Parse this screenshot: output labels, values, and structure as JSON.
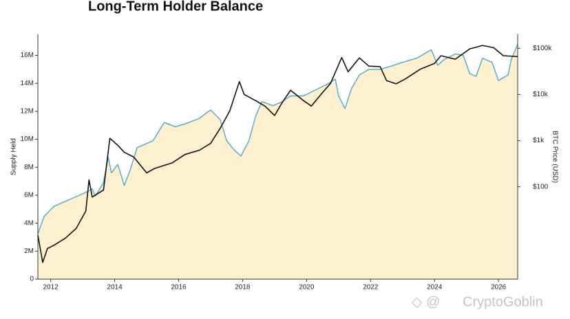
{
  "chart_data": {
    "type": "line",
    "title": "Long-Term Holder Balance",
    "ylabel": "Supply Held",
    "y2label": "BTC Price (USD)",
    "annotation": "CryptoGoblin",
    "xlim": [
      2011.6,
      2026.6
    ],
    "xticks": [
      2012,
      2014,
      2016,
      2018,
      2020,
      2022,
      2024,
      2026
    ],
    "ylim": [
      0,
      17.5
    ],
    "yticks": [
      0,
      {
        "value": 2,
        "label": "2M"
      },
      {
        "value": 4,
        "label": "4M"
      },
      {
        "value": 6,
        "label": "6M"
      },
      {
        "value": 8,
        "label": "8M"
      },
      {
        "value": 10,
        "label": "10M"
      },
      {
        "value": 12,
        "label": "12M"
      },
      {
        "value": 14,
        "label": "14M"
      },
      {
        "value": 16,
        "label": "16M"
      }
    ],
    "y2lim": [
      1,
      200000
    ],
    "y2scale": "log",
    "y2ticks": [
      {
        "value": 100,
        "label": "$100"
      },
      {
        "value": 1000,
        "label": "$1k"
      },
      {
        "value": 10000,
        "label": "$10k"
      },
      {
        "value": 100000,
        "label": "$100k"
      }
    ],
    "series": [
      {
        "name": "Supply Held",
        "color": "#4aa8d8",
        "fill": "#fdf0cf",
        "x": [
          2011.6,
          2011.8,
          2012.1,
          2012.6,
          2013.0,
          2013.3,
          2013.4,
          2013.65,
          2013.8,
          2013.9,
          2014.1,
          2014.3,
          2014.5,
          2014.7,
          2015.2,
          2015.55,
          2015.9,
          2016.2,
          2016.65,
          2017.0,
          2017.3,
          2017.5,
          2017.75,
          2017.95,
          2018.2,
          2018.4,
          2018.6,
          2018.95,
          2019.25,
          2019.5,
          2019.9,
          2020.35,
          2020.7,
          2020.9,
          2021.0,
          2021.2,
          2021.4,
          2021.65,
          2021.95,
          2022.3,
          2022.6,
          2023.0,
          2023.45,
          2023.9,
          2024.1,
          2024.3,
          2024.65,
          2024.9,
          2025.1,
          2025.3,
          2025.5,
          2025.8,
          2026.0,
          2026.3,
          2026.4,
          2026.6
        ],
        "values": [
          3.25,
          4.5,
          5.2,
          5.7,
          6.1,
          6.45,
          5.95,
          6.9,
          8.7,
          7.6,
          8.2,
          6.7,
          7.9,
          9.4,
          9.9,
          11.2,
          10.9,
          11.1,
          11.5,
          12.1,
          11.4,
          9.9,
          9.2,
          8.8,
          9.9,
          11.6,
          12.7,
          12.4,
          12.7,
          13.1,
          13.1,
          13.6,
          14.0,
          14.3,
          13.1,
          12.2,
          13.6,
          14.6,
          15.0,
          15.0,
          15.2,
          15.5,
          15.8,
          16.4,
          15.3,
          15.7,
          16.1,
          16.0,
          14.7,
          14.5,
          15.8,
          15.5,
          14.2,
          14.6,
          15.7,
          16.8
        ]
      },
      {
        "name": "BTC Price (USD)",
        "color": "#111111",
        "axis": "y2",
        "x": [
          2011.6,
          2011.75,
          2011.9,
          2012.1,
          2012.45,
          2012.8,
          2013.1,
          2013.2,
          2013.3,
          2013.65,
          2013.85,
          2014.1,
          2014.3,
          2014.6,
          2015.0,
          2015.25,
          2015.8,
          2016.2,
          2016.65,
          2017.0,
          2017.3,
          2017.6,
          2017.9,
          2018.05,
          2018.4,
          2018.7,
          2019.0,
          2019.25,
          2019.5,
          2019.9,
          2020.15,
          2020.45,
          2020.75,
          2021.1,
          2021.3,
          2021.65,
          2021.95,
          2022.3,
          2022.5,
          2022.8,
          2023.1,
          2023.55,
          2024.0,
          2024.2,
          2024.65,
          2025.1,
          2025.5,
          2025.85,
          2026.15,
          2026.6
        ],
        "values": [
          9,
          2.3,
          4.6,
          5.4,
          7.6,
          12.6,
          30,
          141,
          60,
          85,
          1120,
          790,
          560,
          440,
          200,
          250,
          330,
          500,
          620,
          870,
          1850,
          4400,
          19000,
          10000,
          7400,
          5600,
          3500,
          6900,
          12300,
          7400,
          5600,
          10000,
          17400,
          63000,
          31000,
          62000,
          41000,
          40000,
          20000,
          17000,
          22000,
          35000,
          47000,
          69000,
          58000,
          97000,
          115000,
          103000,
          69000,
          66000
        ]
      }
    ]
  }
}
